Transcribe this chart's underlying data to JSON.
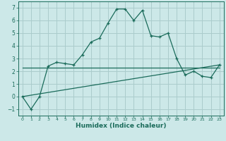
{
  "xlabel": "Humidex (Indice chaleur)",
  "background_color": "#cce8e8",
  "grid_color": "#aacccc",
  "line_color": "#1a6b5a",
  "curve1_x": [
    0,
    1,
    2,
    3,
    4,
    5,
    6,
    7,
    8,
    9,
    10,
    11,
    12,
    13,
    14,
    15,
    16,
    17,
    18,
    19,
    20,
    21,
    22,
    23
  ],
  "curve1_y": [
    0,
    -1,
    0,
    2.4,
    2.7,
    2.6,
    2.5,
    3.3,
    4.3,
    4.6,
    5.8,
    6.9,
    6.9,
    6.0,
    6.8,
    4.8,
    4.7,
    5.0,
    3.0,
    1.7,
    2.0,
    1.6,
    1.5,
    2.5
  ],
  "curve2_x": [
    0,
    23
  ],
  "curve2_y": [
    2.3,
    2.3
  ],
  "curve3_x": [
    0,
    23
  ],
  "curve3_y": [
    0.0,
    2.5
  ],
  "ylim": [
    -1.5,
    7.5
  ],
  "xlim": [
    -0.5,
    23.5
  ],
  "yticks": [
    -1,
    0,
    1,
    2,
    3,
    4,
    5,
    6,
    7
  ],
  "xticks": [
    0,
    1,
    2,
    3,
    4,
    5,
    6,
    7,
    8,
    9,
    10,
    11,
    12,
    13,
    14,
    15,
    16,
    17,
    18,
    19,
    20,
    21,
    22,
    23
  ]
}
